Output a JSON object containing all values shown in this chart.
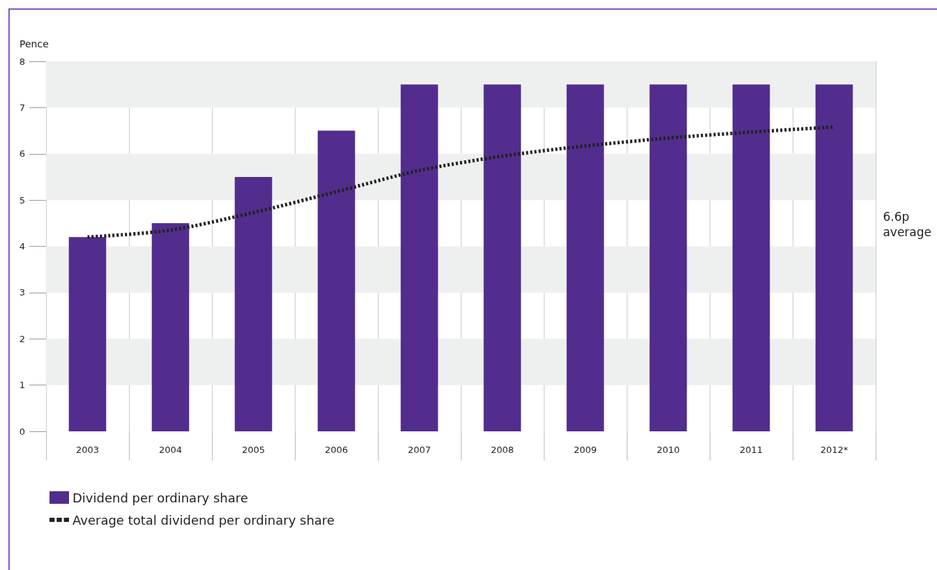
{
  "chart_data": {
    "type": "bar",
    "ylabel": "Pence",
    "categories": [
      "2003",
      "2004",
      "2005",
      "2006",
      "2007",
      "2008",
      "2009",
      "2010",
      "2011",
      "2012*"
    ],
    "series": [
      {
        "name": "Dividend per ordinary share",
        "color": "#522d8e",
        "values": [
          4.2,
          4.5,
          5.5,
          6.5,
          7.5,
          7.5,
          7.5,
          7.5,
          7.5,
          7.5
        ]
      },
      {
        "name": "Average total dividend per ordinary share",
        "type": "line",
        "color": "#222222",
        "line_style": "dotted",
        "values": [
          4.2,
          4.35,
          4.73,
          5.18,
          5.64,
          5.95,
          6.17,
          6.34,
          6.47,
          6.58
        ]
      }
    ],
    "ylim": [
      0,
      8
    ],
    "yticks": [
      0,
      1,
      2,
      3,
      4,
      5,
      6,
      7,
      8
    ],
    "grid": "x",
    "legend": "bottom left",
    "marker": "none",
    "bands": [
      {
        "axis": "y",
        "from": 1,
        "to": 2,
        "color": "#eef0ef"
      },
      {
        "axis": "y",
        "from": 3,
        "to": 4,
        "color": "#eef0ef"
      },
      {
        "axis": "y",
        "from": 5,
        "to": 6,
        "color": "#eef0ef"
      },
      {
        "axis": "y",
        "from": 7,
        "to": 8,
        "color": "#eef0ef"
      }
    ],
    "annotations": [
      "6.6p\naverage"
    ]
  }
}
